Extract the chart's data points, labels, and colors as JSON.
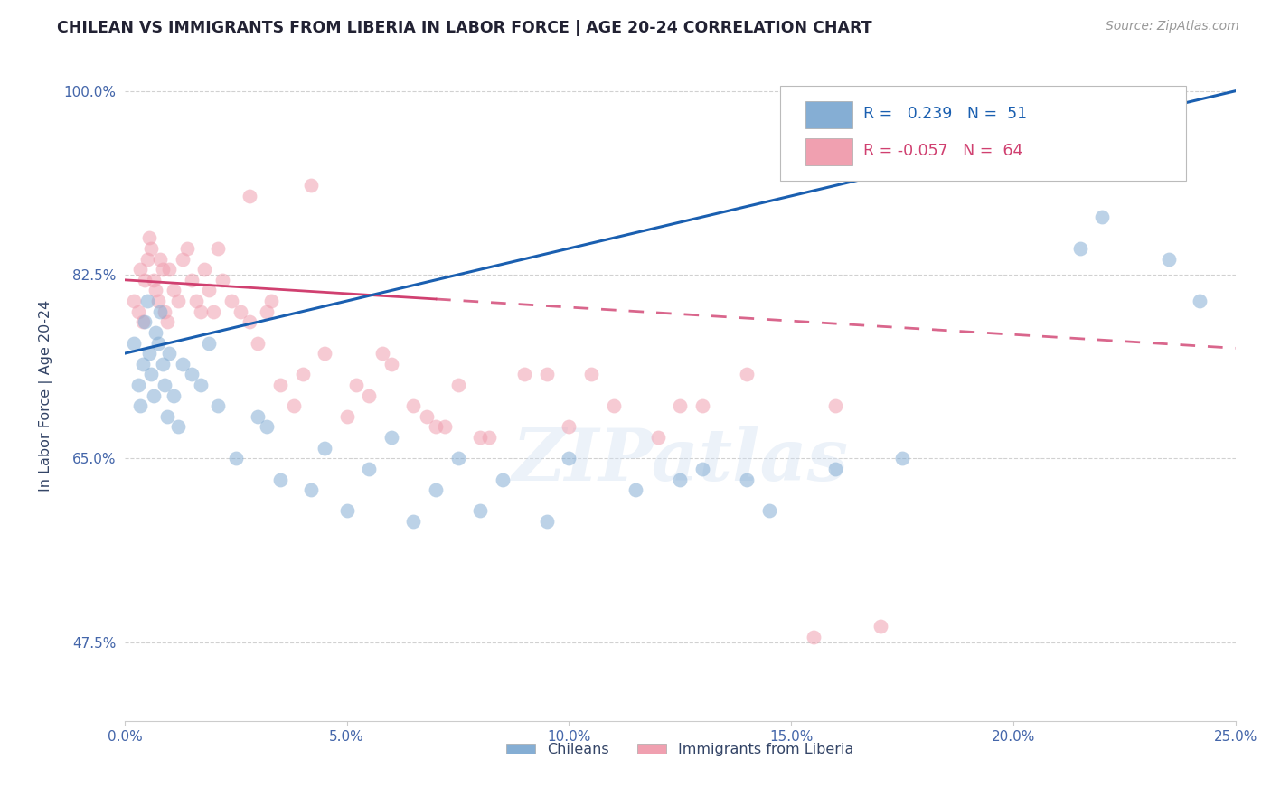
{
  "title": "CHILEAN VS IMMIGRANTS FROM LIBERIA IN LABOR FORCE | AGE 20-24 CORRELATION CHART",
  "source_text": "Source: ZipAtlas.com",
  "ylabel": "In Labor Force | Age 20-24",
  "xlim": [
    0.0,
    25.0
  ],
  "ylim": [
    40.0,
    102.0
  ],
  "xticks": [
    0.0,
    5.0,
    10.0,
    15.0,
    20.0,
    25.0
  ],
  "xticklabels": [
    "0.0%",
    "5.0%",
    "10.0%",
    "15.0%",
    "20.0%",
    "25.0%"
  ],
  "yticks": [
    47.5,
    65.0,
    82.5,
    100.0
  ],
  "yticklabels": [
    "47.5%",
    "65.0%",
    "82.5%",
    "100.0%"
  ],
  "legend_labels": [
    "Chileans",
    "Immigrants from Liberia"
  ],
  "r_blue": 0.239,
  "n_blue": 51,
  "r_pink": -0.057,
  "n_pink": 64,
  "blue_color": "#85aed4",
  "pink_color": "#f0a0b0",
  "blue_line_color": "#1a5fb0",
  "pink_line_color": "#d04070",
  "title_color": "#222233",
  "axis_label_color": "#334466",
  "tick_color": "#4466aa",
  "legend_r_color": "#1a5fb0",
  "legend_r_pink_color": "#d04070",
  "watermark": "ZIPatlas",
  "blue_line_x0": 0.0,
  "blue_line_y0": 75.0,
  "blue_line_x1": 25.0,
  "blue_line_y1": 100.0,
  "pink_line_x0": 0.0,
  "pink_line_y0": 82.0,
  "pink_line_x1": 25.0,
  "pink_line_y1": 75.5,
  "blue_x": [
    0.2,
    0.3,
    0.35,
    0.4,
    0.45,
    0.5,
    0.55,
    0.6,
    0.65,
    0.7,
    0.75,
    0.8,
    0.85,
    0.9,
    0.95,
    1.0,
    1.1,
    1.2,
    1.3,
    1.5,
    1.7,
    1.9,
    2.1,
    2.5,
    3.0,
    3.5,
    4.2,
    5.0,
    5.5,
    6.0,
    7.0,
    7.5,
    8.5,
    10.0,
    11.5,
    13.0,
    14.0,
    14.5,
    16.0,
    17.5,
    19.5,
    21.5,
    22.0,
    23.5,
    24.2,
    3.2,
    4.5,
    8.0,
    12.5,
    9.5,
    6.5
  ],
  "blue_y": [
    76,
    72,
    70,
    74,
    78,
    80,
    75,
    73,
    71,
    77,
    76,
    79,
    74,
    72,
    69,
    75,
    71,
    68,
    74,
    73,
    72,
    76,
    70,
    65,
    69,
    63,
    62,
    60,
    64,
    67,
    62,
    65,
    63,
    65,
    62,
    64,
    63,
    60,
    64,
    65,
    99,
    85,
    88,
    84,
    80,
    68,
    66,
    60,
    63,
    59,
    59
  ],
  "pink_x": [
    0.2,
    0.3,
    0.35,
    0.4,
    0.45,
    0.5,
    0.55,
    0.6,
    0.65,
    0.7,
    0.75,
    0.8,
    0.85,
    0.9,
    0.95,
    1.0,
    1.1,
    1.2,
    1.3,
    1.4,
    1.5,
    1.6,
    1.7,
    1.8,
    1.9,
    2.0,
    2.1,
    2.2,
    2.4,
    2.6,
    2.8,
    3.0,
    3.2,
    3.5,
    3.8,
    4.0,
    4.5,
    5.0,
    5.5,
    6.0,
    6.5,
    7.0,
    7.5,
    8.0,
    9.0,
    10.0,
    11.0,
    12.0,
    13.0,
    14.0,
    15.5,
    17.0,
    3.3,
    5.2,
    6.8,
    8.2,
    10.5,
    16.0,
    4.2,
    2.8,
    5.8,
    7.2,
    9.5,
    12.5
  ],
  "pink_y": [
    80,
    79,
    83,
    78,
    82,
    84,
    86,
    85,
    82,
    81,
    80,
    84,
    83,
    79,
    78,
    83,
    81,
    80,
    84,
    85,
    82,
    80,
    79,
    83,
    81,
    79,
    85,
    82,
    80,
    79,
    78,
    76,
    79,
    72,
    70,
    73,
    75,
    69,
    71,
    74,
    70,
    68,
    72,
    67,
    73,
    68,
    70,
    67,
    70,
    73,
    48,
    49,
    80,
    72,
    69,
    67,
    73,
    70,
    91,
    90,
    75,
    68,
    73,
    70
  ]
}
